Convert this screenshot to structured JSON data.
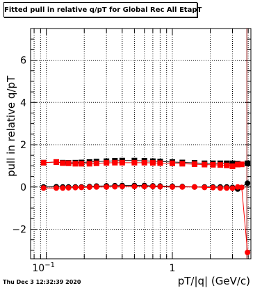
{
  "title": "Fitted pull in relative q/pT for Global Rec All EtapT",
  "timestamp": "Thu Dec  3 12:32:39 2020",
  "chart_data": {
    "type": "scatter",
    "title": "Fitted pull in relative q/pT for Global Rec All EtapT",
    "xlabel": "pT/|q| (GeV/c)",
    "ylabel": "pull in relative q/pT",
    "x_scale": "log",
    "xlim": [
      0.075,
      4.2
    ],
    "ylim": [
      -3.4,
      7.5
    ],
    "x_tick_labels": [
      {
        "value": 0.1,
        "label": "10",
        "exponent": "−1"
      },
      {
        "value": 1,
        "label": "1"
      }
    ],
    "y_ticks": [
      -2,
      0,
      2,
      4,
      6
    ],
    "y_tick_labels": [
      "−2",
      "0",
      "2",
      "4",
      "6"
    ],
    "grid": true,
    "vertical_line_x": 3.9,
    "series": [
      {
        "color": "#000000",
        "x": [
          0.095,
          0.12,
          0.135,
          0.15,
          0.17,
          0.19,
          0.22,
          0.25,
          0.3,
          0.35,
          0.4,
          0.5,
          0.6,
          0.7,
          0.8,
          1.0,
          1.2,
          1.5,
          1.8,
          2.1,
          2.4,
          2.7,
          3.0,
          3.3,
          3.95
        ],
        "y_square": [
          1.15,
          1.18,
          1.15,
          1.14,
          1.15,
          1.16,
          1.18,
          1.2,
          1.22,
          1.24,
          1.25,
          1.25,
          1.24,
          1.22,
          1.2,
          1.18,
          1.16,
          1.14,
          1.12,
          1.12,
          1.12,
          1.12,
          1.12,
          1.1,
          1.12
        ],
        "y_circle": [
          0.0,
          0.01,
          0.0,
          0.0,
          0.0,
          0.0,
          0.02,
          0.04,
          0.05,
          0.06,
          0.07,
          0.07,
          0.07,
          0.05,
          0.04,
          0.03,
          0.02,
          0.0,
          0.0,
          0.0,
          0.0,
          0.0,
          -0.02,
          -0.1,
          0.18
        ]
      },
      {
        "color": "#ff0000",
        "x": [
          0.095,
          0.12,
          0.135,
          0.15,
          0.17,
          0.19,
          0.22,
          0.25,
          0.3,
          0.35,
          0.4,
          0.5,
          0.6,
          0.7,
          0.8,
          1.0,
          1.2,
          1.5,
          1.8,
          2.1,
          2.4,
          2.7,
          3.0,
          3.3,
          3.55,
          3.95
        ],
        "y_square": [
          1.15,
          1.18,
          1.13,
          1.12,
          1.1,
          1.1,
          1.1,
          1.12,
          1.14,
          1.15,
          1.15,
          1.15,
          1.15,
          1.14,
          1.13,
          1.12,
          1.1,
          1.08,
          1.06,
          1.05,
          1.04,
          1.02,
          0.98,
          1.06,
          1.07,
          null
        ],
        "y_circle": [
          -0.05,
          -0.05,
          -0.05,
          -0.04,
          -0.03,
          -0.02,
          -0.01,
          0.0,
          0.0,
          0.01,
          0.02,
          0.02,
          0.02,
          0.02,
          0.01,
          0.0,
          0.0,
          0.0,
          -0.02,
          -0.03,
          -0.05,
          -0.05,
          -0.06,
          0.0,
          -0.02,
          -3.1
        ]
      }
    ]
  }
}
